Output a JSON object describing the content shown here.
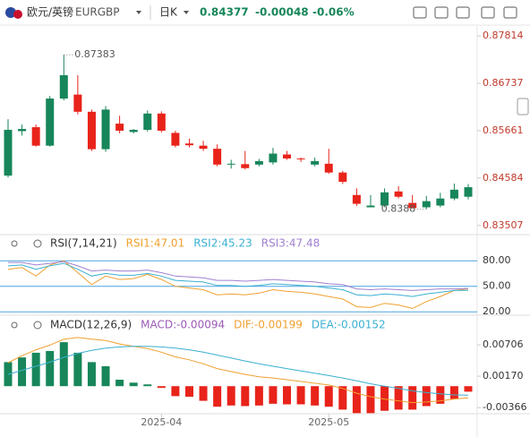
{
  "header": {
    "name": "欧元/英镑",
    "symbol": "EURGBP",
    "period": "日K",
    "price": 0.84377,
    "change": -0.00048,
    "change_pct": "-0.06%"
  },
  "chart_data": [
    {
      "type": "candlestick",
      "categories": [
        null,
        null,
        null,
        null,
        null,
        null,
        null,
        null,
        null,
        null,
        null,
        "2025-04",
        null,
        null,
        null,
        null,
        null,
        null,
        null,
        null,
        null,
        null,
        null,
        "2025-05",
        null,
        null,
        null,
        null,
        null,
        null,
        null,
        null,
        null,
        null
      ],
      "open": [
        0.8464,
        0.8565,
        0.8574,
        0.8532,
        0.8639,
        0.8648,
        0.8609,
        0.8524,
        0.8582,
        0.8563,
        0.8568,
        0.8605,
        0.8561,
        0.8537,
        0.8532,
        0.8525,
        0.8489,
        0.849,
        0.8489,
        0.8494,
        0.8512,
        0.8503,
        0.8489,
        0.8491,
        0.8471,
        0.842,
        0.8392,
        0.8396,
        0.8428,
        0.8402,
        0.8392,
        0.8396,
        0.8412,
        0.8416
      ],
      "high": [
        0.8592,
        0.858,
        0.858,
        0.8645,
        0.87383,
        0.8692,
        0.8614,
        0.8622,
        0.86,
        0.857,
        0.8612,
        0.861,
        0.8566,
        0.8548,
        0.8543,
        0.8535,
        0.85,
        0.852,
        0.8502,
        0.8527,
        0.852,
        0.8505,
        0.8505,
        0.8525,
        0.8475,
        0.8435,
        0.842,
        0.8435,
        0.844,
        0.842,
        0.8418,
        0.8425,
        0.8446,
        0.8445
      ],
      "low": [
        0.846,
        0.8555,
        0.853,
        0.853,
        0.8635,
        0.8603,
        0.852,
        0.8518,
        0.856,
        0.856,
        0.8564,
        0.8562,
        0.8528,
        0.8528,
        0.852,
        0.8485,
        0.848,
        0.8478,
        0.8485,
        0.8489,
        0.85,
        0.8495,
        0.8485,
        0.8468,
        0.8445,
        0.8395,
        0.8393,
        0.8392,
        0.8412,
        0.83938,
        0.8388,
        0.8392,
        0.8408,
        0.841
      ],
      "close": [
        0.8568,
        0.857,
        0.8532,
        0.8639,
        0.8692,
        0.8609,
        0.8524,
        0.8614,
        0.8566,
        0.8568,
        0.8605,
        0.8566,
        0.8532,
        0.8533,
        0.8525,
        0.8489,
        0.8491,
        0.8481,
        0.8497,
        0.8514,
        0.8503,
        0.8501,
        0.8497,
        0.8471,
        0.845,
        0.84,
        0.8396,
        0.8426,
        0.8416,
        0.839,
        0.8406,
        0.8412,
        0.8432,
        0.84377
      ],
      "up_color": "#17865a",
      "down_color": "#e8231a",
      "ylim": [
        0.833,
        0.8812
      ],
      "yticks": [
        0.83507,
        0.84584,
        0.85661,
        0.86737,
        0.87814
      ],
      "tick_color": "#c0392b"
    },
    {
      "type": "line",
      "title": "RSI(7,14,21)",
      "series": [
        {
          "name": "RSI1:47.01",
          "color": "#f0a030",
          "values": [
            70,
            72,
            62,
            75,
            80,
            66,
            52,
            62,
            58,
            59,
            64,
            58,
            50,
            48,
            46,
            40,
            41,
            40,
            42,
            46,
            44,
            43,
            41,
            38,
            35,
            26,
            25,
            30,
            28,
            24,
            32,
            38,
            45,
            47.01
          ]
        },
        {
          "name": "RSI2:45.23",
          "color": "#3bb0d0",
          "values": [
            74,
            75,
            70,
            74,
            77,
            70,
            62,
            65,
            63,
            63,
            65,
            62,
            57,
            56,
            55,
            51,
            51,
            50,
            51,
            53,
            52,
            51,
            50,
            48,
            46,
            40,
            39,
            41,
            40,
            38,
            41,
            43,
            45,
            45.23
          ]
        },
        {
          "name": "RSI3:47.48",
          "color": "#a080d0",
          "values": [
            78,
            78,
            75,
            77,
            79,
            74,
            68,
            69,
            68,
            68,
            69,
            66,
            62,
            61,
            60,
            57,
            57,
            56,
            57,
            58,
            57,
            56,
            55,
            53,
            52,
            47,
            46,
            47,
            46,
            45,
            46,
            47,
            47,
            47.48
          ]
        }
      ],
      "ylim": [
        16,
        100
      ],
      "yticks": [
        {
          "value": 20,
          "label": "20.00"
        },
        {
          "value": 50,
          "label": "50.00"
        },
        {
          "value": 80,
          "label": "80.00"
        }
      ],
      "grid": true,
      "grid_color": "#4aa3df",
      "tick_color": "#333"
    },
    {
      "type": "macd",
      "title": "MACD(12,26,9)",
      "series": [
        {
          "name": "MACD:-0.00094",
          "color": "#9b59b6",
          "kind": "bar",
          "values": [
            0.0041,
            0.0049,
            0.0057,
            0.006,
            0.0075,
            0.0057,
            0.0041,
            0.0034,
            0.0011,
            0.0006,
            0.0003,
            -0.0003,
            -0.0017,
            -0.0018,
            -0.0025,
            -0.0035,
            -0.0033,
            -0.0034,
            -0.0033,
            -0.003,
            -0.0031,
            -0.0031,
            -0.0033,
            -0.0035,
            -0.004,
            -0.0046,
            -0.0046,
            -0.0042,
            -0.004,
            -0.004,
            -0.0034,
            -0.003,
            -0.0022,
            -0.00094
          ]
        },
        {
          "name": "DIF:-0.00199",
          "color": "#f0a030",
          "kind": "line",
          "values": [
            0.004,
            0.0052,
            0.0062,
            0.007,
            0.008,
            0.0083,
            0.008,
            0.0078,
            0.0072,
            0.0068,
            0.0064,
            0.0058,
            0.005,
            0.0045,
            0.0038,
            0.003,
            0.0025,
            0.002,
            0.0016,
            0.0014,
            0.0011,
            0.0008,
            0.0005,
            0.0002,
            -0.0004,
            -0.0012,
            -0.0018,
            -0.0022,
            -0.0025,
            -0.0028,
            -0.0027,
            -0.0025,
            -0.0022,
            -0.00199
          ]
        },
        {
          "name": "DEA:-0.00152",
          "color": "#3bb0d0",
          "kind": "line",
          "values": [
            0.002,
            0.0027,
            0.0034,
            0.0041,
            0.0049,
            0.0056,
            0.0061,
            0.0065,
            0.0067,
            0.0068,
            0.0068,
            0.0067,
            0.0065,
            0.0062,
            0.0058,
            0.0053,
            0.0048,
            0.0043,
            0.0038,
            0.0034,
            0.003,
            0.0026,
            0.0022,
            0.0018,
            0.0014,
            0.0009,
            0.0004,
            0,
            -0.0004,
            -0.0008,
            -0.0011,
            -0.0013,
            -0.0015,
            -0.00152
          ]
        }
      ],
      "up_color": "#17865a",
      "down_color": "#e8231a",
      "ylim": [
        -0.0047,
        0.0121
      ],
      "yticks": [
        -0.00366,
        {
          "value": 0.0017,
          "label": "0.00170"
        },
        0.00706
      ],
      "tick_color": "#333"
    }
  ]
}
